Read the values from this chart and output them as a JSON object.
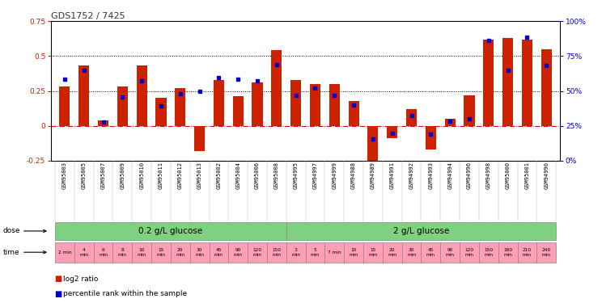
{
  "title": "GDS1752 / 7425",
  "samples": [
    "GSM95003",
    "GSM95005",
    "GSM95007",
    "GSM95009",
    "GSM95010",
    "GSM95011",
    "GSM95012",
    "GSM95013",
    "GSM95002",
    "GSM95004",
    "GSM95006",
    "GSM95008",
    "GSM94995",
    "GSM94997",
    "GSM94999",
    "GSM94988",
    "GSM94989",
    "GSM94991",
    "GSM94992",
    "GSM94993",
    "GSM94994",
    "GSM94996",
    "GSM94998",
    "GSM95000",
    "GSM95001",
    "GSM94990"
  ],
  "log2_ratio": [
    0.28,
    0.43,
    0.04,
    0.28,
    0.43,
    0.2,
    0.27,
    -0.18,
    0.33,
    0.21,
    0.31,
    0.54,
    0.33,
    0.3,
    0.3,
    0.18,
    -0.27,
    -0.09,
    0.12,
    -0.17,
    0.05,
    0.22,
    0.62,
    0.63,
    0.62,
    0.55
  ],
  "percentile_rank": [
    58.5,
    65.0,
    27.5,
    45.5,
    57.0,
    39.5,
    48.0,
    49.5,
    59.5,
    58.5,
    57.5,
    69.0,
    47.0,
    52.0,
    47.0,
    40.0,
    15.5,
    19.5,
    32.5,
    19.0,
    28.0,
    30.0,
    86.0,
    65.0,
    88.5,
    68.5
  ],
  "bar_color": "#CC2200",
  "dot_color": "#0000CC",
  "ylim_left": [
    -0.25,
    0.75
  ],
  "ylim_right": [
    0,
    100
  ],
  "hlines": [
    0.0,
    0.25,
    0.5
  ],
  "hline_styles": [
    "dashdot",
    "dotted",
    "dotted"
  ],
  "hline_colors": [
    "#CC0000",
    "#000000",
    "#000000"
  ],
  "background_color": "#FFFFFF",
  "dose_label": "dose",
  "time_label": "time",
  "dose_groups": [
    {
      "label": "0.2 g/L glucose",
      "start": 0,
      "end": 11
    },
    {
      "label": "2 g/L glucose",
      "start": 12,
      "end": 25
    }
  ],
  "green_color": "#7FD17F",
  "pink_color": "#FF9EB5",
  "time_labels": [
    "2 min",
    "4\nmin",
    "6\nmin",
    "8\nmin",
    "10\nmin",
    "15\nmin",
    "20\nmin",
    "30\nmin",
    "45\nmin",
    "90\nmin",
    "120\nmin",
    "150\nmin",
    "3\nmin",
    "5\nmin",
    "7 min",
    "10\nmin",
    "15\nmin",
    "20\nmin",
    "30\nmin",
    "45\nmin",
    "90\nmin",
    "120\nmin",
    "150\nmin",
    "180\nmin",
    "210\nmin",
    "240\nmin"
  ],
  "legend_items": [
    "log2 ratio",
    "percentile rank within the sample"
  ]
}
